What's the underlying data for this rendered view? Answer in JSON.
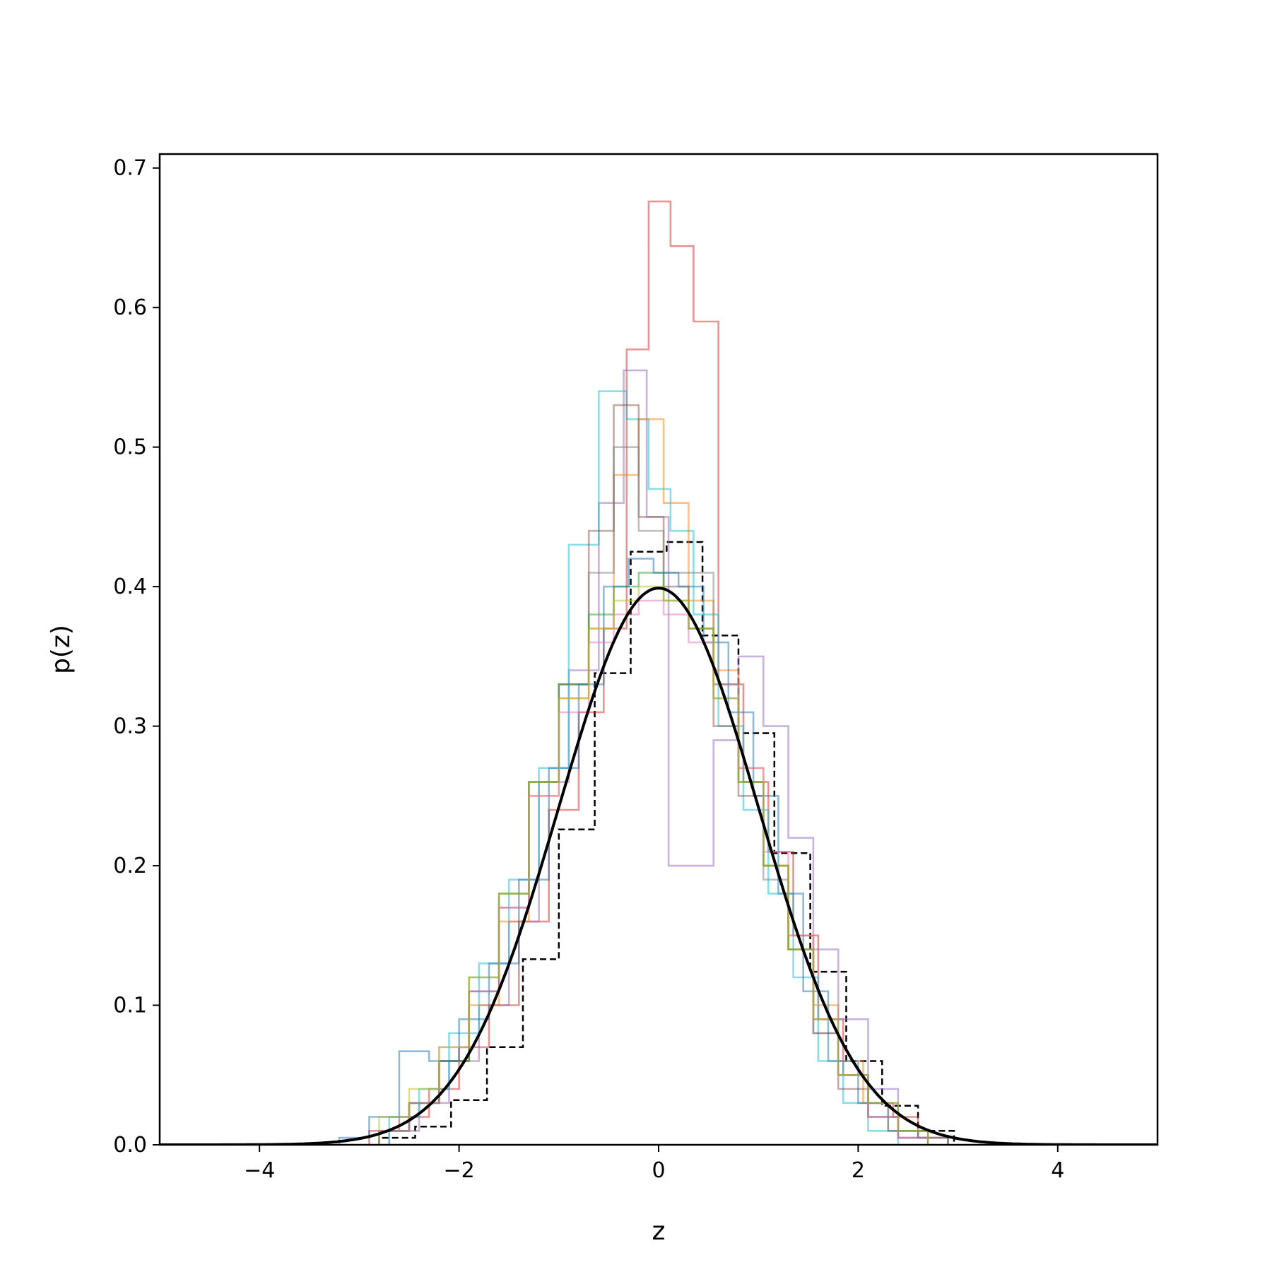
{
  "chart_data": {
    "type": "line",
    "title": "",
    "xlabel": "z",
    "ylabel": "p(z)",
    "xlim": [
      -5,
      5
    ],
    "ylim": [
      0,
      0.71
    ],
    "xticks": [
      -4,
      -2,
      0,
      2,
      4
    ],
    "xtick_labels": [
      "−4",
      "−2",
      "0",
      "2",
      "4"
    ],
    "yticks": [
      0.0,
      0.1,
      0.2,
      0.3,
      0.4,
      0.5,
      0.6,
      0.7
    ],
    "ytick_labels": [
      "0.0",
      "0.1",
      "0.2",
      "0.3",
      "0.4",
      "0.5",
      "0.6",
      "0.7"
    ],
    "grid": false,
    "legend": "none",
    "reference_curve": {
      "style": "solid",
      "color": "#000000",
      "distribution": "standard normal",
      "mean": 0,
      "sd": 1,
      "x_range": [
        -5,
        5
      ],
      "peak": 0.399
    },
    "histograms": [
      {
        "style": "dashed",
        "color": "#000000",
        "bin_edges": [
          -2.8,
          -2.44,
          -2.08,
          -1.72,
          -1.36,
          -1.0,
          -0.64,
          -0.28,
          0.08,
          0.44,
          0.8,
          1.16,
          1.52,
          1.88,
          2.24,
          2.6,
          2.96
        ],
        "densities": [
          0.005,
          0.013,
          0.032,
          0.07,
          0.133,
          0.226,
          0.338,
          0.425,
          0.432,
          0.365,
          0.295,
          0.209,
          0.124,
          0.06,
          0.028,
          0.01
        ]
      },
      {
        "style": "solid",
        "color": "#d62728",
        "bin_edges": [
          -2.9,
          -2.6,
          -2.3,
          -2.0,
          -1.7,
          -1.4,
          -1.1,
          -0.8,
          -0.55,
          -0.32,
          -0.1,
          0.12,
          0.35,
          0.6,
          0.85,
          1.1,
          1.35,
          1.6,
          1.85,
          2.1,
          2.35,
          2.6,
          2.9
        ],
        "densities": [
          0.01,
          0.02,
          0.04,
          0.07,
          0.1,
          0.16,
          0.24,
          0.31,
          0.37,
          0.57,
          0.676,
          0.644,
          0.59,
          0.33,
          0.26,
          0.21,
          0.15,
          0.09,
          0.05,
          0.03,
          0.02,
          0.005
        ]
      },
      {
        "style": "solid",
        "color": "#9467bd",
        "bin_edges": [
          -2.7,
          -2.4,
          -2.1,
          -1.8,
          -1.5,
          -1.2,
          -0.9,
          -0.6,
          -0.35,
          -0.12,
          0.1,
          0.3,
          0.55,
          0.8,
          1.05,
          1.3,
          1.55,
          1.8,
          2.1,
          2.4,
          2.7
        ],
        "densities": [
          0.01,
          0.03,
          0.06,
          0.1,
          0.16,
          0.26,
          0.34,
          0.46,
          0.555,
          0.45,
          0.2,
          0.2,
          0.29,
          0.35,
          0.3,
          0.22,
          0.14,
          0.09,
          0.04,
          0.01
        ]
      },
      {
        "style": "solid",
        "color": "#17becf",
        "bin_edges": [
          -2.7,
          -2.4,
          -2.1,
          -1.8,
          -1.5,
          -1.2,
          -0.9,
          -0.6,
          -0.32,
          -0.1,
          0.12,
          0.35,
          0.6,
          0.85,
          1.1,
          1.35,
          1.6,
          1.85,
          2.1,
          2.4
        ],
        "densities": [
          0.02,
          0.04,
          0.08,
          0.13,
          0.19,
          0.27,
          0.43,
          0.54,
          0.52,
          0.47,
          0.44,
          0.38,
          0.3,
          0.24,
          0.18,
          0.12,
          0.06,
          0.03,
          0.01
        ]
      },
      {
        "style": "solid",
        "color": "#ff7f0e",
        "bin_edges": [
          -2.8,
          -2.5,
          -2.2,
          -1.9,
          -1.6,
          -1.3,
          -1.0,
          -0.7,
          -0.45,
          -0.2,
          0.05,
          0.3,
          0.55,
          0.8,
          1.05,
          1.3,
          1.55,
          1.8,
          2.05,
          2.3,
          2.6,
          2.9
        ],
        "densities": [
          0.01,
          0.03,
          0.06,
          0.1,
          0.16,
          0.25,
          0.32,
          0.37,
          0.48,
          0.52,
          0.46,
          0.39,
          0.34,
          0.27,
          0.2,
          0.15,
          0.1,
          0.06,
          0.03,
          0.01,
          0.005
        ]
      },
      {
        "style": "solid",
        "color": "#8c564b",
        "bin_edges": [
          -2.8,
          -2.5,
          -2.2,
          -1.9,
          -1.6,
          -1.3,
          -1.0,
          -0.7,
          -0.45,
          -0.2,
          0.05,
          0.3,
          0.55,
          0.8,
          1.05,
          1.3,
          1.55,
          1.8,
          2.1,
          2.4,
          2.7
        ],
        "densities": [
          0.01,
          0.03,
          0.06,
          0.11,
          0.17,
          0.26,
          0.33,
          0.44,
          0.53,
          0.45,
          0.4,
          0.37,
          0.3,
          0.25,
          0.2,
          0.14,
          0.08,
          0.04,
          0.02,
          0.005
        ]
      },
      {
        "style": "solid",
        "color": "#7f7f7f",
        "bin_edges": [
          -2.8,
          -2.5,
          -2.2,
          -1.9,
          -1.6,
          -1.3,
          -1.0,
          -0.7,
          -0.45,
          -0.2,
          0.05,
          0.3,
          0.55,
          0.8,
          1.05,
          1.3,
          1.55,
          1.8,
          2.1,
          2.4,
          2.7
        ],
        "densities": [
          0.01,
          0.03,
          0.06,
          0.11,
          0.18,
          0.26,
          0.33,
          0.41,
          0.5,
          0.44,
          0.41,
          0.41,
          0.32,
          0.26,
          0.19,
          0.14,
          0.08,
          0.05,
          0.02,
          0.005
        ]
      },
      {
        "style": "solid",
        "color": "#2ca02c",
        "bin_edges": [
          -2.8,
          -2.5,
          -2.2,
          -1.9,
          -1.6,
          -1.3,
          -1.0,
          -0.7,
          -0.45,
          -0.2,
          0.05,
          0.3,
          0.55,
          0.8,
          1.05,
          1.3,
          1.55,
          1.8,
          2.1,
          2.4,
          2.7
        ],
        "densities": [
          0.01,
          0.03,
          0.06,
          0.12,
          0.18,
          0.26,
          0.33,
          0.38,
          0.4,
          0.41,
          0.39,
          0.37,
          0.33,
          0.26,
          0.2,
          0.14,
          0.09,
          0.05,
          0.03,
          0.01
        ]
      },
      {
        "style": "solid",
        "color": "#1f77b4",
        "bin_edges": [
          -3.2,
          -2.9,
          -2.6,
          -2.3,
          -2.0,
          -1.7,
          -1.4,
          -1.1,
          -0.8,
          -0.55,
          -0.3,
          -0.05,
          0.2,
          0.45,
          0.7,
          0.95,
          1.2,
          1.45,
          1.7,
          2.0,
          2.3,
          2.6,
          2.9
        ],
        "densities": [
          0.005,
          0.02,
          0.067,
          0.06,
          0.09,
          0.13,
          0.19,
          0.27,
          0.33,
          0.4,
          0.42,
          0.41,
          0.4,
          0.36,
          0.31,
          0.25,
          0.18,
          0.11,
          0.06,
          0.03,
          0.01,
          0.005
        ]
      },
      {
        "style": "solid",
        "color": "#e377c2",
        "bin_edges": [
          -2.8,
          -2.5,
          -2.2,
          -1.9,
          -1.6,
          -1.3,
          -1.0,
          -0.7,
          -0.45,
          -0.2,
          0.05,
          0.3,
          0.55,
          0.8,
          1.05,
          1.3,
          1.55,
          1.8,
          2.1,
          2.4,
          2.7
        ],
        "densities": [
          0.01,
          0.03,
          0.07,
          0.11,
          0.17,
          0.25,
          0.31,
          0.36,
          0.38,
          0.39,
          0.38,
          0.36,
          0.33,
          0.27,
          0.21,
          0.15,
          0.09,
          0.05,
          0.02,
          0.005
        ]
      },
      {
        "style": "solid",
        "color": "#bcbd22",
        "bin_edges": [
          -2.8,
          -2.5,
          -2.2,
          -1.9,
          -1.6,
          -1.3,
          -1.0,
          -0.7,
          -0.45,
          -0.2,
          0.05,
          0.3,
          0.55,
          0.8,
          1.05,
          1.3,
          1.55,
          1.8,
          2.1,
          2.4,
          2.7
        ],
        "densities": [
          0.02,
          0.04,
          0.07,
          0.12,
          0.18,
          0.26,
          0.32,
          0.37,
          0.39,
          0.4,
          0.39,
          0.37,
          0.32,
          0.26,
          0.2,
          0.14,
          0.09,
          0.05,
          0.03,
          0.01
        ]
      }
    ]
  }
}
